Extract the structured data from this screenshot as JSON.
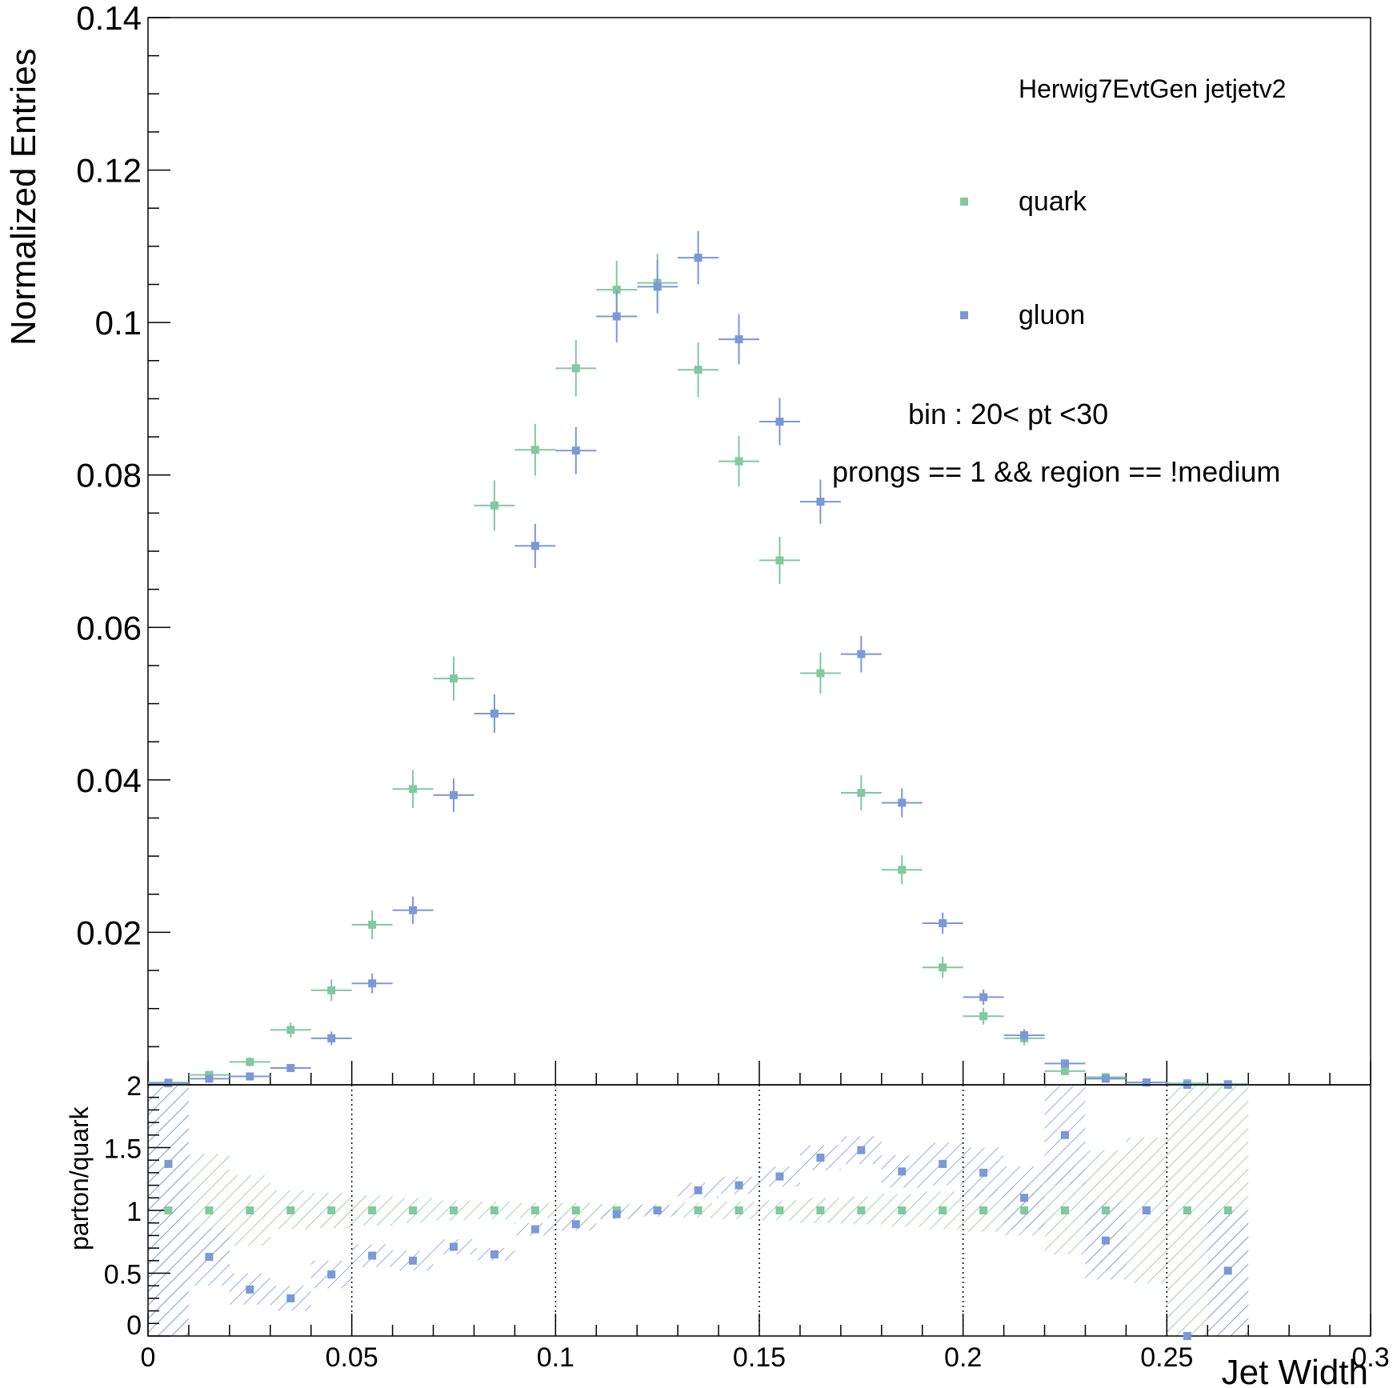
{
  "colors": {
    "quark": "#82c8a0",
    "gluon": "#7b98d8",
    "axis": "#000000"
  },
  "chart_data": [
    {
      "type": "scatter",
      "panel": "top",
      "ylabel": "Normalized Entries",
      "xlim": [
        0,
        0.3
      ],
      "ylim": [
        0,
        0.14
      ],
      "y_tick_labels": [
        "0.02",
        "0.04",
        "0.06",
        "0.08",
        "0.1",
        "0.12",
        "0.14"
      ],
      "legend_position": "top-right",
      "annotations": {
        "header": "Herwig7EvtGen jetjetv2",
        "bin": "bin : 20< pt <30",
        "selection": "prongs == 1 && region == !medium"
      },
      "x": [
        0.005,
        0.015,
        0.025,
        0.035,
        0.045,
        0.055,
        0.065,
        0.075,
        0.085,
        0.095,
        0.105,
        0.115,
        0.125,
        0.135,
        0.145,
        0.155,
        0.165,
        0.175,
        0.185,
        0.195,
        0.205,
        0.215,
        0.225,
        0.235,
        0.245,
        0.255,
        0.265
      ],
      "x_err": 0.005,
      "series": [
        {
          "name": "quark",
          "values": [
            0.0003,
            0.0013,
            0.003,
            0.0072,
            0.0124,
            0.021,
            0.0388,
            0.0533,
            0.076,
            0.0833,
            0.094,
            0.1043,
            0.1052,
            0.0938,
            0.0818,
            0.0688,
            0.054,
            0.0383,
            0.0282,
            0.0154,
            0.009,
            0.0061,
            0.0018,
            0.001,
            0.0003,
            0.0002,
            0.0001
          ],
          "errors": [
            0.0001,
            0.0004,
            0.0006,
            0.001,
            0.0014,
            0.0019,
            0.0025,
            0.0029,
            0.0033,
            0.0034,
            0.0037,
            0.0038,
            0.0038,
            0.0036,
            0.0033,
            0.0031,
            0.0027,
            0.0023,
            0.0019,
            0.0014,
            0.0011,
            0.0009,
            0.0005,
            0.0003,
            0.0002,
            0.0001,
            0.0001
          ]
        },
        {
          "name": "gluon",
          "values": [
            0.0002,
            0.0008,
            0.0011,
            0.0022,
            0.0061,
            0.0133,
            0.0229,
            0.038,
            0.0487,
            0.0707,
            0.0832,
            0.1008,
            0.1047,
            0.1085,
            0.0978,
            0.087,
            0.0765,
            0.0565,
            0.037,
            0.0212,
            0.0115,
            0.0065,
            0.0028,
            0.0008,
            0.0003,
            0.0,
            0.0
          ],
          "errors": [
            0.0001,
            0.0003,
            0.0004,
            0.0005,
            0.0009,
            0.0013,
            0.0018,
            0.0022,
            0.0025,
            0.0029,
            0.0031,
            0.0034,
            0.0035,
            0.0035,
            0.0033,
            0.0031,
            0.0029,
            0.0024,
            0.0019,
            0.0014,
            0.001,
            0.0008,
            0.0005,
            0.0003,
            0.0002,
            0.0,
            0.0
          ]
        }
      ]
    },
    {
      "type": "scatter",
      "panel": "ratio",
      "ylabel": "parton/quark",
      "xlabel": "Jet Width",
      "xlim": [
        0,
        0.3
      ],
      "ylim": [
        0,
        2
      ],
      "y_tick_labels": [
        "0",
        "0.5",
        "1",
        "1.5",
        "2"
      ],
      "x_tick_labels": [
        "0",
        "0.05",
        "0.1",
        "0.15",
        "0.2",
        "0.25",
        "0.3"
      ],
      "x": [
        0.005,
        0.015,
        0.025,
        0.035,
        0.045,
        0.055,
        0.065,
        0.075,
        0.085,
        0.095,
        0.105,
        0.115,
        0.125,
        0.135,
        0.145,
        0.155,
        0.165,
        0.175,
        0.185,
        0.195,
        0.205,
        0.215,
        0.225,
        0.235,
        0.245,
        0.255,
        0.265
      ],
      "band_width": 0.01,
      "series": [
        {
          "name": "quark",
          "values": [
            1,
            1,
            1,
            1,
            1,
            1,
            1,
            1,
            1,
            1,
            1,
            1,
            1,
            1,
            1,
            1,
            1,
            1,
            1,
            1,
            1,
            1,
            1,
            1,
            1,
            1,
            1
          ],
          "band_low": [
            0.0,
            0.55,
            0.72,
            0.85,
            0.86,
            0.88,
            0.9,
            0.92,
            0.93,
            0.94,
            0.94,
            0.95,
            0.95,
            0.94,
            0.93,
            0.92,
            0.9,
            0.89,
            0.87,
            0.85,
            0.83,
            0.8,
            0.65,
            0.52,
            0.42,
            0.0,
            0.0
          ],
          "band_high": [
            2.0,
            1.45,
            1.28,
            1.16,
            1.14,
            1.12,
            1.1,
            1.08,
            1.07,
            1.06,
            1.06,
            1.05,
            1.05,
            1.06,
            1.07,
            1.08,
            1.1,
            1.11,
            1.13,
            1.15,
            1.17,
            1.2,
            1.35,
            1.48,
            1.58,
            2.0,
            2.0
          ]
        },
        {
          "name": "gluon",
          "values": [
            1.37,
            0.63,
            0.37,
            0.3,
            0.49,
            0.64,
            0.6,
            0.71,
            0.65,
            0.85,
            0.89,
            0.97,
            1.0,
            1.16,
            1.2,
            1.27,
            1.42,
            1.48,
            1.31,
            1.37,
            1.3,
            1.1,
            1.6,
            0.76,
            1.0,
            0.0,
            0.52
          ],
          "band_low": [
            0.0,
            0.4,
            0.25,
            0.2,
            0.38,
            0.55,
            0.52,
            0.65,
            0.6,
            0.8,
            0.84,
            0.93,
            0.96,
            1.1,
            1.13,
            1.19,
            1.32,
            1.37,
            1.18,
            1.2,
            1.1,
            0.85,
            1.2,
            0.45,
            1.0,
            0.0,
            0.0
          ],
          "band_high": [
            2.0,
            0.86,
            0.5,
            0.4,
            0.6,
            0.73,
            0.68,
            0.77,
            0.7,
            0.9,
            0.94,
            1.01,
            1.04,
            1.22,
            1.27,
            1.35,
            1.52,
            1.59,
            1.44,
            1.54,
            1.5,
            1.35,
            2.0,
            1.07,
            1.0,
            0.0,
            1.0
          ]
        }
      ]
    }
  ]
}
